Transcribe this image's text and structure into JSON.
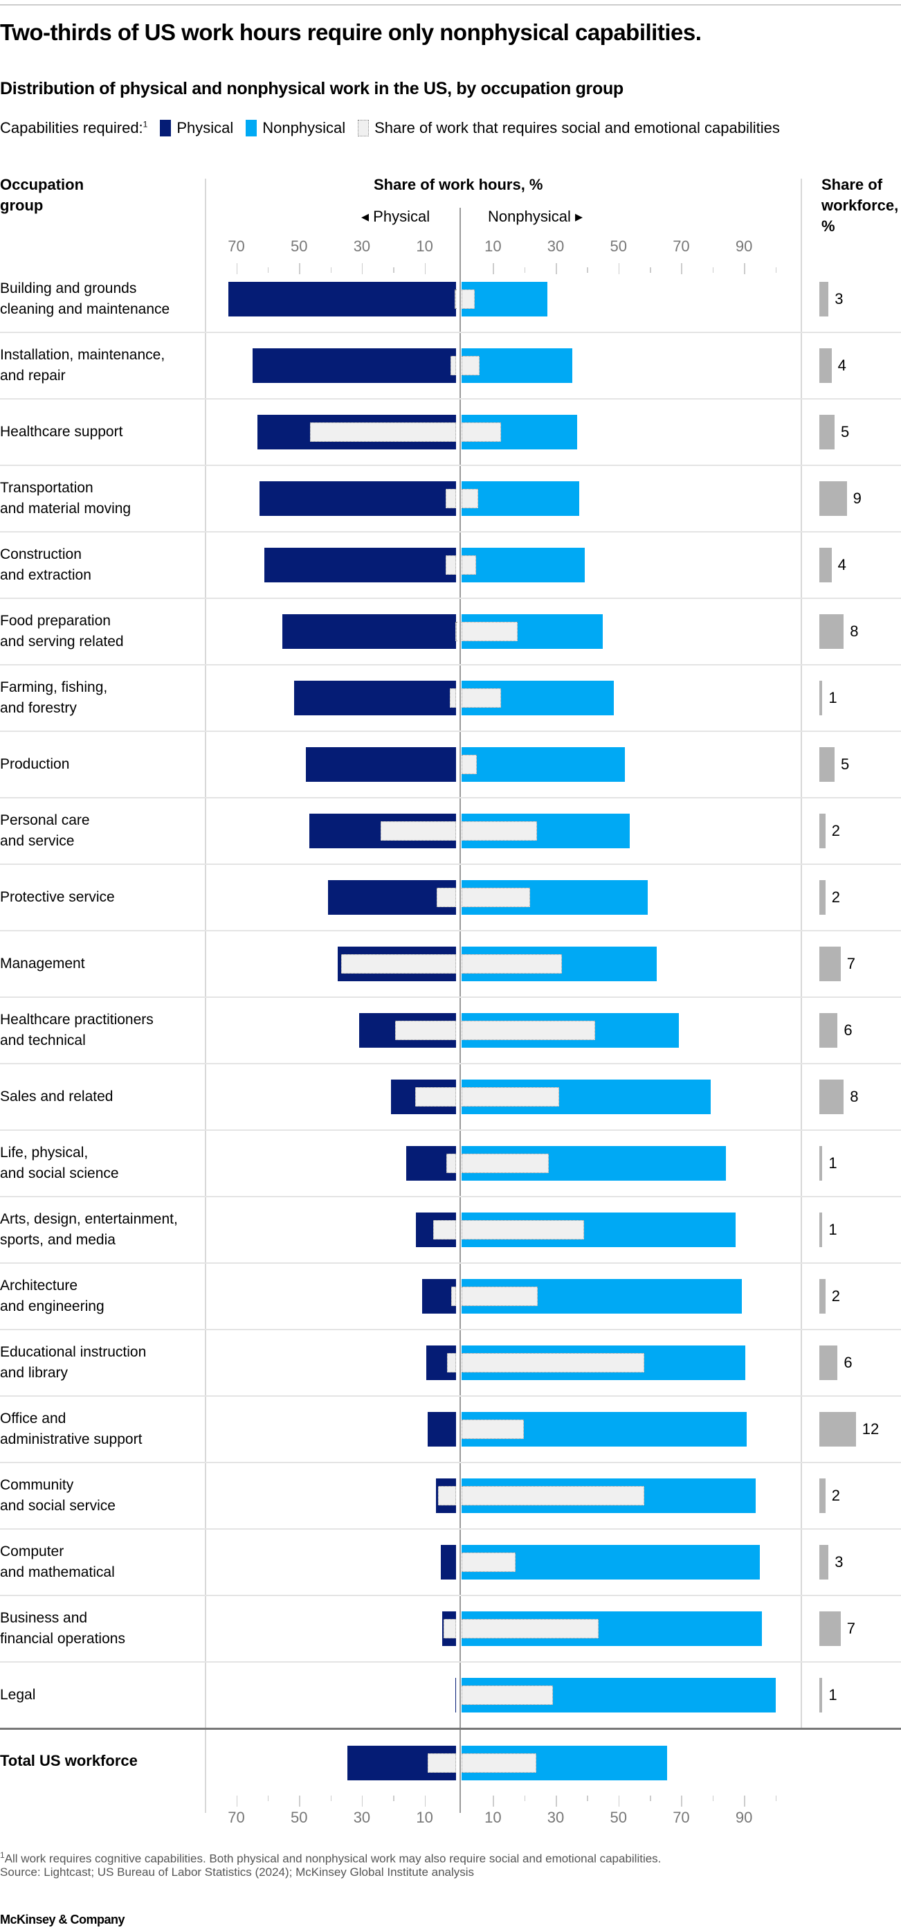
{
  "title": "Two-thirds of US work hours require only nonphysical capabilities.",
  "subtitle": "Distribution of physical and nonphysical work in the US, by occupation group",
  "legend": {
    "prefix": "Capabilities required:",
    "prefix_note": "1",
    "physical": "Physical",
    "nonphysical": "Nonphysical",
    "social": "Share of work that requires social and emotional capabilities"
  },
  "colors": {
    "physical": "#051c75",
    "nonphysical": "#00a9f4",
    "social": "#f0f0f0",
    "workforce": "#b3b3b3"
  },
  "headers": {
    "occupation": "Occupation\ngroup",
    "hours": "Share of work hours, %",
    "physical_dir": "◂ Physical",
    "nonphysical_dir": "Nonphysical ▸",
    "workforce": "Share of\nworkforce,\n%"
  },
  "chart_data": {
    "type": "bar",
    "orientation": "horizontal-diverging",
    "xlabel": "Share of work hours, %",
    "physical_axis": {
      "ticks": [
        70,
        50,
        30,
        10
      ],
      "range": [
        0,
        75
      ]
    },
    "nonphysical_axis": {
      "ticks": [
        10,
        30,
        50,
        70,
        90
      ],
      "range": [
        0,
        100
      ]
    },
    "categories": [
      "Building and grounds\ncleaning and maintenance",
      "Installation, maintenance,\nand repair",
      "Healthcare support",
      "Transportation\nand material moving",
      "Construction\nand extraction",
      "Food preparation\nand serving related",
      "Farming, fishing,\nand forestry",
      "Production",
      "Personal care\nand service",
      "Protective service",
      "Management",
      "Healthcare practitioners\nand technical",
      "Sales and related",
      "Life, physical,\nand social science",
      "Arts, design, entertainment,\nsports, and media",
      "Architecture\nand engineering",
      "Educational instruction\nand library",
      "Office and\nadministrative support",
      "Community\nand social service",
      "Computer\nand mathematical",
      "Business and\nfinancial operations",
      "Legal"
    ],
    "series": [
      {
        "name": "Physical",
        "values": [
          72.5,
          64.8,
          63.2,
          62.7,
          61.0,
          55.3,
          51.5,
          47.8,
          46.7,
          40.9,
          37.8,
          30.9,
          20.8,
          15.8,
          12.7,
          10.8,
          9.5,
          9.1,
          6.3,
          4.9,
          4.4,
          0.3
        ]
      },
      {
        "name": "Nonphysical",
        "values": [
          27.4,
          35.3,
          36.9,
          37.5,
          39.2,
          44.9,
          48.5,
          52.1,
          53.5,
          59.3,
          62.2,
          69.2,
          79.3,
          84.2,
          87.4,
          89.4,
          90.4,
          90.9,
          93.7,
          95.1,
          95.6,
          100
        ]
      },
      {
        "name": "Social and emotional (within physical)",
        "values": [
          0.4,
          1.8,
          46.6,
          3.2,
          3.4,
          0.3,
          2.0,
          0,
          24.0,
          6.2,
          36.5,
          19.5,
          13.0,
          3.0,
          7.3,
          1.5,
          2.8,
          0,
          5.7,
          0,
          3.9,
          0
        ]
      },
      {
        "name": "Social and emotional (within nonphysical)",
        "values": [
          4.2,
          5.7,
          12.5,
          5.2,
          4.6,
          17.8,
          12.5,
          4.9,
          24.1,
          21.9,
          31.9,
          42.5,
          31.0,
          27.7,
          39.1,
          24.3,
          58.2,
          19.8,
          58.2,
          17.2,
          43.6,
          29.1
        ]
      }
    ],
    "workforce_share": {
      "label": "Share of workforce, %",
      "values": [
        3,
        4,
        5,
        9,
        4,
        8,
        1,
        5,
        2,
        2,
        7,
        6,
        8,
        1,
        1,
        2,
        6,
        12,
        2,
        3,
        7,
        1
      ]
    },
    "total": {
      "label": "Total US workforce",
      "physical": 34.7,
      "nonphysical": 65.5,
      "social_physical": 9.0,
      "social_nonphysical": 23.8
    }
  },
  "footnote_mark": "1",
  "footnote": "All work requires cognitive capabilities. Both physical and nonphysical work may also require social and emotional capabilities.",
  "source": "Source: Lightcast; US Bureau of Labor Statistics (2024); McKinsey Global Institute analysis",
  "brand": "McKinsey & Company"
}
